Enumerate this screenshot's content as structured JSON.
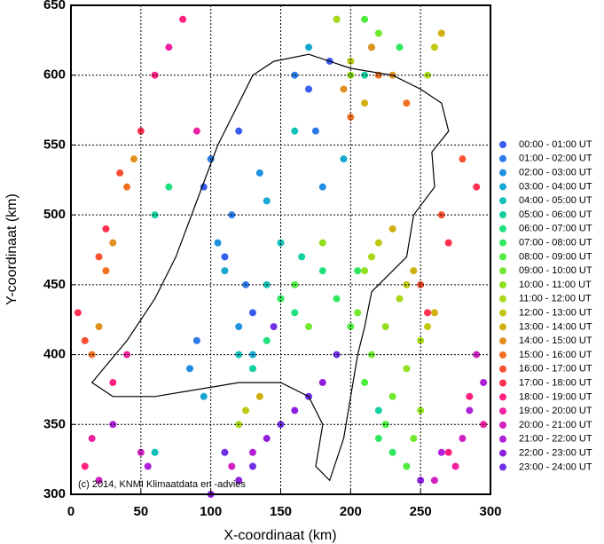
{
  "chart_data": {
    "type": "scatter",
    "x_label": "X-coordinaat (km)",
    "y_label": "Y-coordinaat (km)",
    "annotation": "(c) 2014, KNMI Klimaatdata en -advies",
    "xlim": [
      0,
      300
    ],
    "xticks": [
      0,
      50,
      100,
      150,
      200,
      250,
      300
    ],
    "ylim": [
      300,
      650
    ],
    "yticks": [
      300,
      350,
      400,
      450,
      500,
      550,
      600,
      650
    ],
    "grid": true,
    "legend": "right",
    "series": [
      {
        "name": "00:00 - 01:00 UT",
        "color": "#3a5cf0",
        "x": [
          95,
          110,
          120,
          170,
          185,
          130
        ],
        "values": [
          520,
          470,
          560,
          590,
          610,
          430
        ]
      },
      {
        "name": "01:00 - 02:00 UT",
        "color": "#2a7ae8",
        "x": [
          100,
          115,
          125,
          175,
          160,
          90
        ],
        "values": [
          540,
          500,
          450,
          560,
          600,
          410
        ]
      },
      {
        "name": "02:00 - 03:00 UT",
        "color": "#1f8fe0",
        "x": [
          105,
          120,
          135,
          180,
          190,
          85
        ],
        "values": [
          480,
          420,
          530,
          520,
          640,
          390
        ]
      },
      {
        "name": "03:00 - 04:00 UT",
        "color": "#17a8d0",
        "x": [
          110,
          130,
          140,
          195,
          170,
          95
        ],
        "values": [
          460,
          400,
          510,
          540,
          620,
          370
        ]
      },
      {
        "name": "04:00 - 05:00 UT",
        "color": "#10c0b8",
        "x": [
          140,
          150,
          160,
          200,
          120,
          60
        ],
        "values": [
          450,
          480,
          560,
          610,
          400,
          330
        ]
      },
      {
        "name": "05:00 - 06:00 UT",
        "color": "#12d0a0",
        "x": [
          150,
          165,
          210,
          220,
          60,
          130
        ],
        "values": [
          440,
          470,
          600,
          360,
          500,
          390
        ]
      },
      {
        "name": "06:00 - 07:00 UT",
        "color": "#20e080",
        "x": [
          160,
          180,
          215,
          225,
          70,
          140
        ],
        "values": [
          430,
          460,
          620,
          350,
          520,
          410
        ]
      },
      {
        "name": "07:00 - 08:00 UT",
        "color": "#30e860",
        "x": [
          190,
          205,
          220,
          230,
          235,
          150
        ],
        "values": [
          440,
          460,
          340,
          330,
          620,
          440
        ]
      },
      {
        "name": "08:00 - 09:00 UT",
        "color": "#50ec40",
        "x": [
          200,
          210,
          225,
          240,
          210,
          160
        ],
        "values": [
          420,
          380,
          350,
          320,
          640,
          450
        ]
      },
      {
        "name": "09:00 - 10:00 UT",
        "color": "#70e830",
        "x": [
          205,
          215,
          230,
          245,
          220,
          170
        ],
        "values": [
          430,
          400,
          370,
          340,
          630,
          420
        ]
      },
      {
        "name": "10:00 - 11:00 UT",
        "color": "#90e020",
        "x": [
          210,
          225,
          240,
          250,
          200,
          180
        ],
        "values": [
          460,
          420,
          390,
          360,
          600,
          480
        ]
      },
      {
        "name": "11:00 - 12:00 UT",
        "color": "#a8d818",
        "x": [
          215,
          235,
          250,
          255,
          190,
          120
        ],
        "values": [
          470,
          440,
          410,
          600,
          640,
          350
        ]
      },
      {
        "name": "12:00 - 13:00 UT",
        "color": "#c0c810",
        "x": [
          220,
          240,
          255,
          260,
          200,
          125
        ],
        "values": [
          480,
          450,
          420,
          620,
          610,
          360
        ]
      },
      {
        "name": "13:00 - 14:00 UT",
        "color": "#d0b010",
        "x": [
          230,
          245,
          260,
          265,
          210,
          135
        ],
        "values": [
          490,
          460,
          430,
          630,
          580,
          370
        ]
      },
      {
        "name": "14:00 - 15:00 UT",
        "color": "#e09020",
        "x": [
          20,
          30,
          45,
          195,
          215,
          230
        ],
        "values": [
          420,
          480,
          540,
          590,
          620,
          600
        ]
      },
      {
        "name": "15:00 - 16:00 UT",
        "color": "#f07020",
        "x": [
          15,
          25,
          40,
          200,
          220,
          240
        ],
        "values": [
          400,
          460,
          520,
          570,
          600,
          580
        ]
      },
      {
        "name": "16:00 - 17:00 UT",
        "color": "#f85030",
        "x": [
          10,
          20,
          35,
          250,
          265,
          280
        ],
        "values": [
          410,
          470,
          530,
          450,
          500,
          540
        ]
      },
      {
        "name": "17:00 - 18:00 UT",
        "color": "#ff3050",
        "x": [
          5,
          25,
          50,
          255,
          270,
          290
        ],
        "values": [
          430,
          490,
          560,
          430,
          480,
          520
        ]
      },
      {
        "name": "18:00 - 19:00 UT",
        "color": "#ff2080",
        "x": [
          10,
          30,
          60,
          80,
          270,
          285
        ],
        "values": [
          320,
          380,
          600,
          640,
          330,
          370
        ]
      },
      {
        "name": "19:00 - 20:00 UT",
        "color": "#f020a0",
        "x": [
          15,
          40,
          70,
          90,
          275,
          295
        ],
        "values": [
          340,
          400,
          620,
          560,
          320,
          350
        ]
      },
      {
        "name": "20:00 - 21:00 UT",
        "color": "#d020c0",
        "x": [
          20,
          50,
          260,
          280,
          290,
          115
        ],
        "values": [
          310,
          330,
          310,
          340,
          400,
          320
        ]
      },
      {
        "name": "21:00 - 22:00 UT",
        "color": "#b020d8",
        "x": [
          30,
          55,
          265,
          285,
          295,
          130
        ],
        "values": [
          350,
          320,
          330,
          360,
          380,
          330
        ]
      },
      {
        "name": "22:00 - 23:00 UT",
        "color": "#9020e0",
        "x": [
          120,
          140,
          160,
          180,
          250,
          100
        ],
        "values": [
          310,
          340,
          360,
          380,
          310,
          300
        ]
      },
      {
        "name": "23:00 - 24:00 UT",
        "color": "#7030e8",
        "x": [
          130,
          150,
          170,
          190,
          145,
          110
        ],
        "values": [
          320,
          350,
          370,
          400,
          420,
          330
        ]
      }
    ]
  }
}
